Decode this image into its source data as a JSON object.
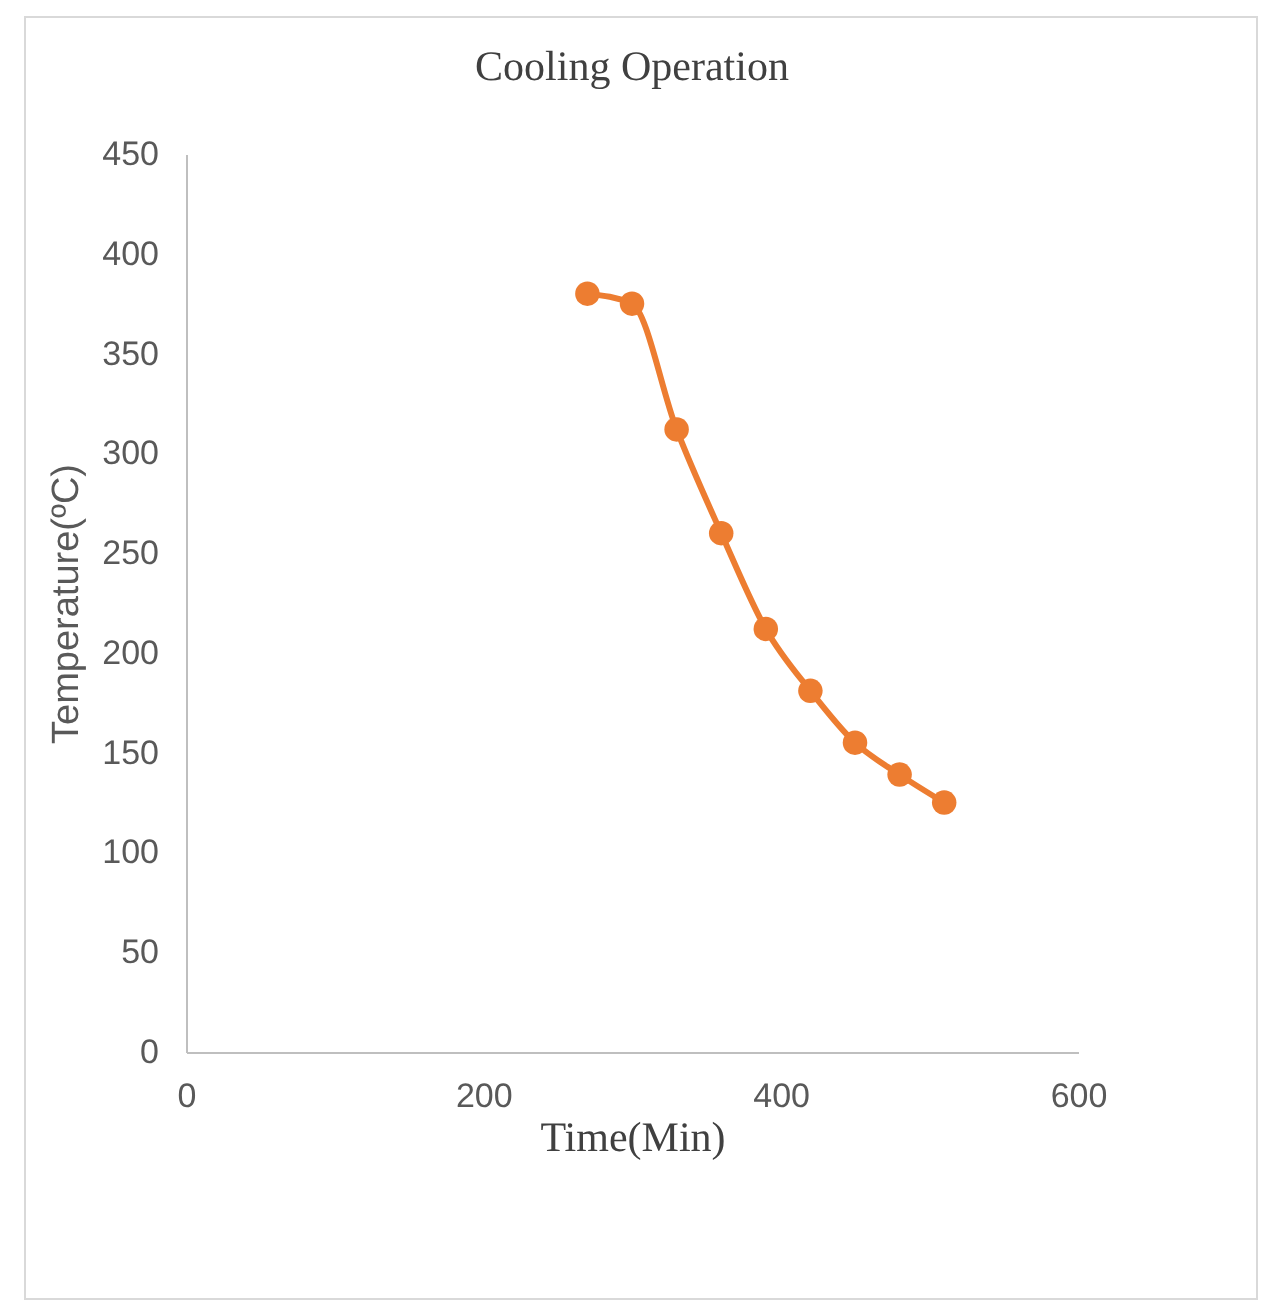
{
  "chart_data": {
    "type": "line",
    "title": "Cooling Operation",
    "xlabel": "Time(Min)",
    "ylabel": "Temperature(ºC)",
    "x": [
      270,
      300,
      330,
      360,
      390,
      420,
      450,
      480,
      510
    ],
    "series": [
      {
        "color": "#ed7d31",
        "values": [
          380,
          375,
          312,
          260,
          212,
          181,
          155,
          139,
          125
        ]
      }
    ],
    "xlim": [
      0,
      600
    ],
    "xticks": [
      0,
      200,
      400,
      600
    ],
    "ylim": [
      0,
      450
    ],
    "yticks": [
      0,
      50,
      100,
      150,
      200,
      250,
      300,
      350,
      400,
      450
    ],
    "grid": false,
    "legend": false,
    "marker": "circle",
    "line_style": "solid"
  }
}
